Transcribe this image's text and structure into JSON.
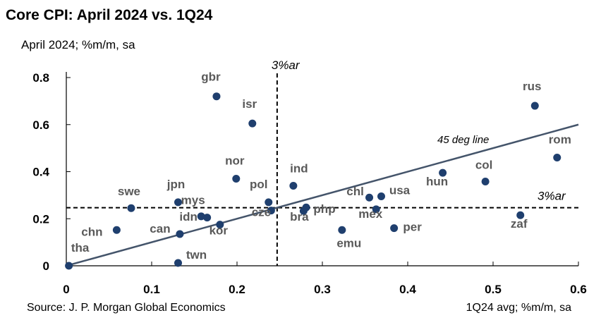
{
  "title": "Core CPI: April 2024 vs. 1Q24",
  "source": "Source: J. P. Morgan Global Economics",
  "colors": {
    "point": "#1f3f6e",
    "regression": "#44546a",
    "label": "#595959",
    "axis": "#000000"
  },
  "chart_data": {
    "type": "scatter",
    "title": "Core CPI: April 2024 vs. 1Q24",
    "xlabel": "1Q24 avg; %m/m, sa",
    "ylabel": "April 2024; %m/m, sa",
    "xlim": [
      0,
      0.6
    ],
    "ylim": [
      0,
      0.8
    ],
    "x_ticks": [
      "0",
      "0.1",
      "0.2",
      "0.3",
      "0.4",
      "0.5",
      "0.6"
    ],
    "y_ticks": [
      "0",
      "0.2",
      "0.4",
      "0.6",
      "0.8"
    ],
    "grid": false,
    "points": [
      {
        "label": "gbr",
        "x": 0.176,
        "y": 0.72
      },
      {
        "label": "isr",
        "x": 0.218,
        "y": 0.605
      },
      {
        "label": "nor",
        "x": 0.199,
        "y": 0.37
      },
      {
        "label": "jpn",
        "x": 0.131,
        "y": 0.27
      },
      {
        "label": "swe",
        "x": 0.076,
        "y": 0.245
      },
      {
        "label": "mys",
        "x": 0.165,
        "y": 0.205
      },
      {
        "label": "idn",
        "x": 0.158,
        "y": 0.21
      },
      {
        "label": "pol",
        "x": 0.237,
        "y": 0.27
      },
      {
        "label": "cze",
        "x": 0.24,
        "y": 0.235
      },
      {
        "label": "chn",
        "x": 0.059,
        "y": 0.152
      },
      {
        "label": "can",
        "x": 0.133,
        "y": 0.135
      },
      {
        "label": "kor",
        "x": 0.18,
        "y": 0.175
      },
      {
        "label": "tha",
        "x": 0.003,
        "y": 0.0
      },
      {
        "label": "twn",
        "x": 0.131,
        "y": 0.012
      },
      {
        "label": "ind",
        "x": 0.266,
        "y": 0.34
      },
      {
        "label": "bra",
        "x": 0.278,
        "y": 0.233
      },
      {
        "label": "php",
        "x": 0.281,
        "y": 0.248
      },
      {
        "label": "emu",
        "x": 0.323,
        "y": 0.152
      },
      {
        "label": "chl",
        "x": 0.355,
        "y": 0.29
      },
      {
        "label": "usa",
        "x": 0.369,
        "y": 0.295
      },
      {
        "label": "mex",
        "x": 0.363,
        "y": 0.24
      },
      {
        "label": "per",
        "x": 0.384,
        "y": 0.16
      },
      {
        "label": "hun",
        "x": 0.441,
        "y": 0.395
      },
      {
        "label": "col",
        "x": 0.491,
        "y": 0.358
      },
      {
        "label": "rus",
        "x": 0.549,
        "y": 0.68
      },
      {
        "label": "rom",
        "x": 0.575,
        "y": 0.46
      },
      {
        "label": "zaf",
        "x": 0.532,
        "y": 0.215
      }
    ],
    "line_45": {
      "label": "45 deg line",
      "x": [
        0,
        0.6
      ],
      "y": [
        0,
        0.6
      ]
    },
    "reference_lines": [
      {
        "orientation": "vertical",
        "value": 0.247,
        "label": "3%ar"
      },
      {
        "orientation": "horizontal",
        "value": 0.247,
        "label": "3%ar"
      }
    ]
  }
}
